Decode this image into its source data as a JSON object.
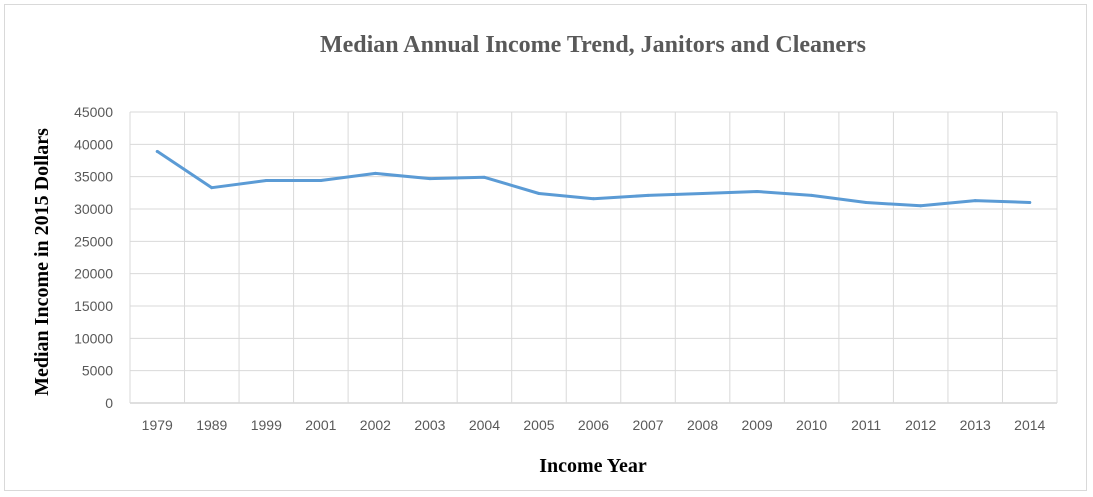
{
  "chart_data": {
    "type": "line",
    "title": "Median Annual Income Trend, Janitors and Cleaners",
    "xlabel": "Income Year",
    "ylabel": "Median Income in 2015 Dollars",
    "categories": [
      "1979",
      "1989",
      "1999",
      "2001",
      "2002",
      "2003",
      "2004",
      "2005",
      "2006",
      "2007",
      "2008",
      "2009",
      "2010",
      "2011",
      "2012",
      "2013",
      "2014"
    ],
    "series": [
      {
        "values": [
          38900,
          33300,
          34400,
          34400,
          35500,
          34700,
          34900,
          32400,
          31600,
          32100,
          32400,
          32700,
          32100,
          31000,
          30500,
          31300,
          31000
        ],
        "color": "#5b9bd5"
      }
    ],
    "ylim": [
      0,
      45000
    ],
    "yticks": [
      0,
      5000,
      10000,
      15000,
      20000,
      25000,
      30000,
      35000,
      40000,
      45000
    ],
    "grid": true,
    "legend": "none"
  }
}
